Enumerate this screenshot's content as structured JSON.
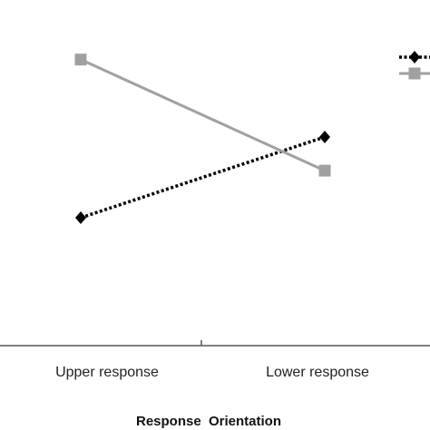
{
  "chart_data": {
    "type": "line",
    "title": "",
    "xlabel": "Response  Orientation",
    "ylabel": "",
    "categories": [
      "Upper response",
      "Lower response"
    ],
    "ylim": [
      0,
      1
    ],
    "grid": false,
    "legend_position": "top-right",
    "series": [
      {
        "values": [
          0.38,
          0.62
        ],
        "color": "#000000",
        "line_style": "dotted",
        "marker": "diamond"
      },
      {
        "values": [
          0.85,
          0.52
        ],
        "color": "#a0a0a0",
        "line_style": "solid",
        "marker": "square"
      }
    ]
  }
}
